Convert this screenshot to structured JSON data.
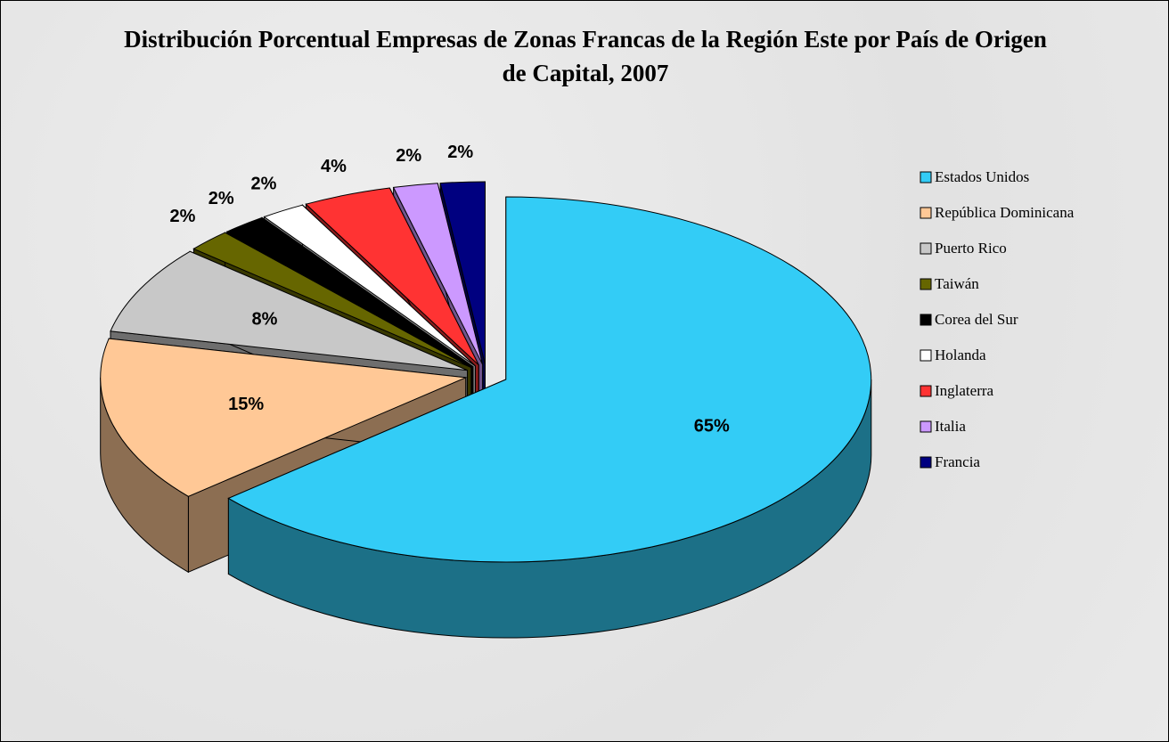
{
  "chart_data": {
    "type": "pie",
    "title": "Distribución Porcentual Empresas de Zonas Francas de la Región Este por País de Origen de Capital, 2007",
    "categories": [
      "Estados Unidos",
      "República Dominicana",
      "Puerto Rico",
      "Taiwán",
      "Corea del Sur",
      "Holanda",
      "Inglaterra",
      "Italia",
      "Francia"
    ],
    "values": [
      65,
      15,
      8,
      2,
      2,
      2,
      4,
      2,
      2
    ],
    "value_labels": [
      "65%",
      "15%",
      "8%",
      "2%",
      "2%",
      "2%",
      "4%",
      "2%",
      "2%"
    ],
    "colors": [
      "#33ccf6",
      "#ffc896",
      "#c8c8c8",
      "#666600",
      "#000000",
      "#ffffff",
      "#ff3333",
      "#cc99ff",
      "#000080"
    ],
    "legend": "right",
    "three_d": true
  }
}
